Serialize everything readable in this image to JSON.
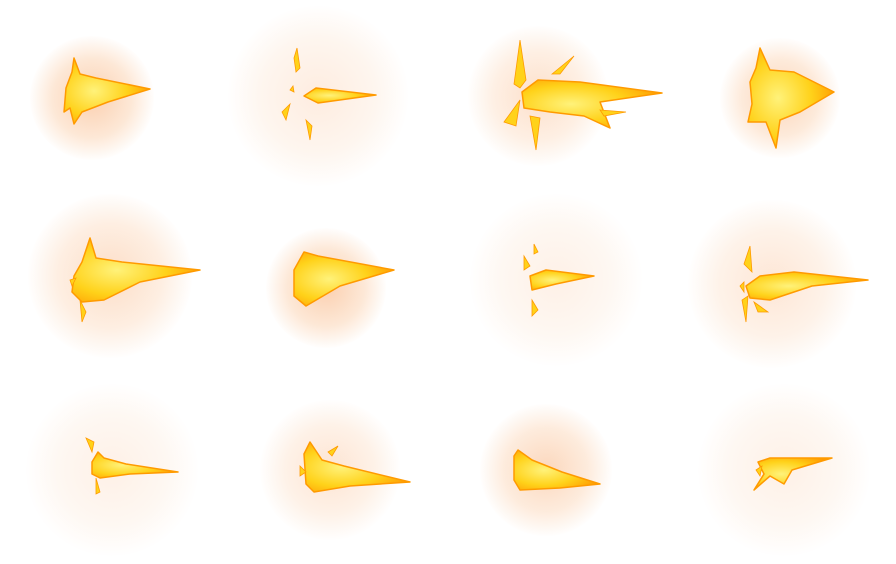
{
  "sheet": {
    "background": "#ffffff",
    "rows": 3,
    "columns": 4
  },
  "palette": {
    "core": "#fff27a",
    "mid": "#ffd21a",
    "edge": "#ff9a00",
    "glow": "#f7a15a"
  },
  "frames": [
    {
      "row": 1,
      "col": 1,
      "sprite": "muzzle-flash-sprite",
      "variant": "stubby-spiked"
    },
    {
      "row": 1,
      "col": 2,
      "sprite": "muzzle-flash-sprite",
      "variant": "thin-with-sparks"
    },
    {
      "row": 1,
      "col": 3,
      "sprite": "muzzle-flash-sprite",
      "variant": "large-burst-with-sparks"
    },
    {
      "row": 1,
      "col": 4,
      "sprite": "muzzle-flash-sprite",
      "variant": "compact-burst"
    },
    {
      "row": 2,
      "col": 1,
      "sprite": "muzzle-flash-sprite",
      "variant": "long-spiked"
    },
    {
      "row": 2,
      "col": 2,
      "sprite": "muzzle-flash-sprite",
      "variant": "long-rounded"
    },
    {
      "row": 2,
      "col": 3,
      "sprite": "muzzle-flash-sprite",
      "variant": "small-faint-with-sparks"
    },
    {
      "row": 2,
      "col": 4,
      "sprite": "muzzle-flash-sprite",
      "variant": "long-thin-with-sparks"
    },
    {
      "row": 3,
      "col": 1,
      "sprite": "muzzle-flash-sprite",
      "variant": "small-thin"
    },
    {
      "row": 3,
      "col": 2,
      "sprite": "muzzle-flash-sprite",
      "variant": "medium-jagged"
    },
    {
      "row": 3,
      "col": 3,
      "sprite": "muzzle-flash-sprite",
      "variant": "rounded-wedge"
    },
    {
      "row": 3,
      "col": 4,
      "sprite": "muzzle-flash-sprite",
      "variant": "small-split"
    }
  ]
}
